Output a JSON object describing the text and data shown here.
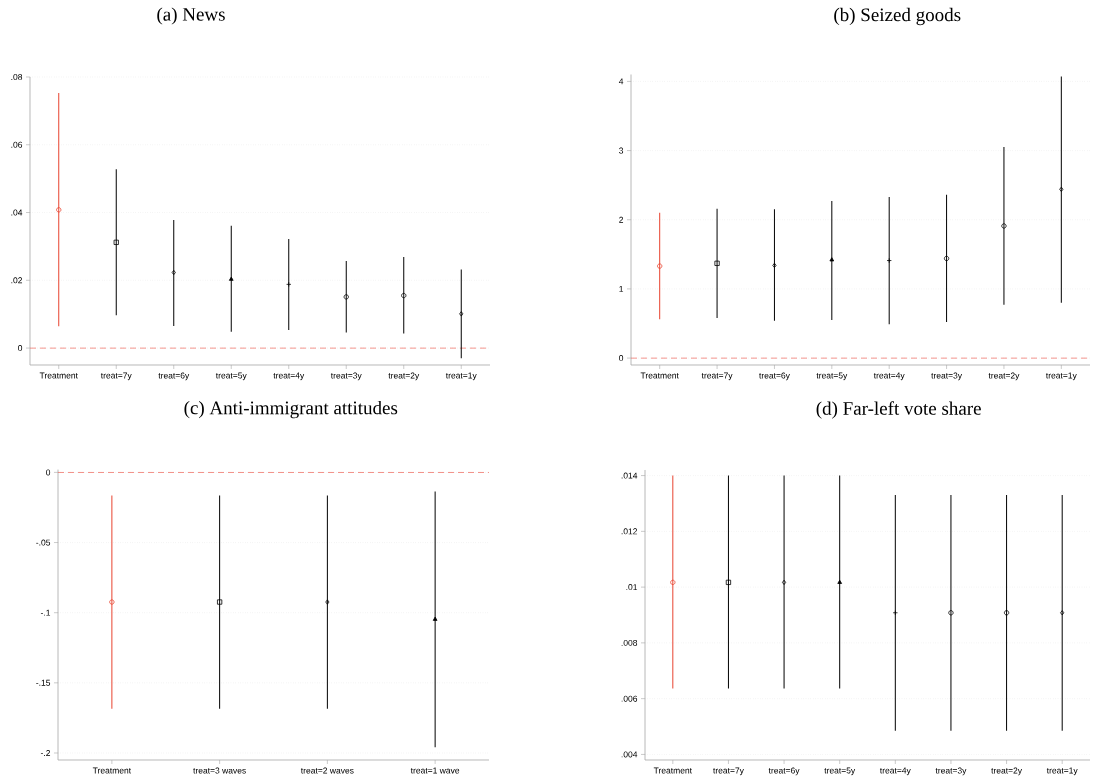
{
  "chart_data": [
    {
      "type": "scatter",
      "title": "(a) News",
      "categories": [
        "Treatment",
        "treat=7y",
        "treat=6y",
        "treat=5y",
        "treat=4y",
        "treat=3y",
        "treat=2y",
        "treat=1y"
      ],
      "series": [
        {
          "color": "#e8432f",
          "marker": "circle",
          "values": [
            0.0408,
            null,
            null,
            null,
            null,
            null,
            null,
            null
          ],
          "errors": [
            [
              0.0064,
              0.0753
            ],
            null,
            null,
            null,
            null,
            null,
            null,
            null
          ]
        },
        {
          "color": "#000000",
          "marker": "square",
          "values": [
            null,
            0.0312,
            null,
            null,
            null,
            null,
            null,
            null
          ],
          "errors": [
            null,
            [
              0.0097,
              0.0528
            ],
            null,
            null,
            null,
            null,
            null,
            null
          ]
        },
        {
          "color": "#000000",
          "marker": "diamond",
          "values": [
            null,
            null,
            0.0223,
            null,
            null,
            null,
            null,
            0.0101
          ],
          "errors": [
            null,
            null,
            [
              0.0065,
              0.0378
            ],
            null,
            null,
            null,
            null,
            [
              -0.003,
              0.0232
            ]
          ]
        },
        {
          "color": "#000000",
          "marker": "triangle",
          "values": [
            null,
            null,
            null,
            0.0203,
            null,
            null,
            null,
            null
          ],
          "errors": [
            null,
            null,
            null,
            [
              0.0048,
              0.0361
            ],
            null,
            null,
            null,
            null
          ]
        },
        {
          "color": "#000000",
          "marker": "cross",
          "values": [
            null,
            null,
            null,
            null,
            0.0188,
            null,
            null,
            null
          ],
          "errors": [
            null,
            null,
            null,
            null,
            [
              0.0053,
              0.0322
            ],
            null,
            null,
            null
          ]
        },
        {
          "color": "#000000",
          "marker": "circle",
          "values": [
            null,
            null,
            null,
            null,
            null,
            0.0151,
            0.0155,
            null
          ],
          "errors": [
            null,
            null,
            null,
            null,
            null,
            [
              0.0046,
              0.0257
            ],
            [
              0.0043,
              0.0269
            ],
            null
          ]
        }
      ],
      "ylim": [
        -0.005,
        0.08
      ],
      "yticks": [
        0,
        {
          "value": 0.02,
          "label": ".02"
        },
        {
          "value": 0.04,
          "label": ".04"
        },
        {
          "value": 0.06,
          "label": ".06"
        },
        {
          "value": 0.08,
          "label": ".08"
        }
      ],
      "grid": "y",
      "ref_lines": [
        {
          "axis": "y",
          "value": 0,
          "color": "#ee6a5f",
          "line_style": "dashed"
        }
      ]
    },
    {
      "type": "scatter",
      "title": "(b) Seized goods",
      "categories": [
        "Treatment",
        "treat=7y",
        "treat=6y",
        "treat=5y",
        "treat=4y",
        "treat=3y",
        "treat=2y",
        "treat=1y"
      ],
      "series": [
        {
          "color": "#e8432f",
          "marker": "circle",
          "values": [
            1.33,
            null,
            null,
            null,
            null,
            null,
            null,
            null
          ],
          "errors": [
            [
              0.56,
              2.1
            ],
            null,
            null,
            null,
            null,
            null,
            null,
            null
          ]
        },
        {
          "color": "#000000",
          "marker": "square",
          "values": [
            null,
            1.37,
            null,
            null,
            null,
            null,
            null,
            null
          ],
          "errors": [
            null,
            [
              0.58,
              2.16
            ],
            null,
            null,
            null,
            null,
            null,
            null
          ]
        },
        {
          "color": "#000000",
          "marker": "diamond",
          "values": [
            null,
            null,
            1.34,
            null,
            null,
            null,
            null,
            2.44
          ],
          "errors": [
            null,
            null,
            [
              0.54,
              2.15
            ],
            null,
            null,
            null,
            null,
            [
              0.8,
              4.07
            ]
          ]
        },
        {
          "color": "#000000",
          "marker": "triangle",
          "values": [
            null,
            null,
            null,
            1.42,
            null,
            null,
            null,
            null
          ],
          "errors": [
            null,
            null,
            null,
            [
              0.55,
              2.27
            ],
            null,
            null,
            null,
            null
          ]
        },
        {
          "color": "#000000",
          "marker": "cross",
          "values": [
            null,
            null,
            null,
            null,
            1.41,
            null,
            null,
            null
          ],
          "errors": [
            null,
            null,
            null,
            null,
            [
              0.49,
              2.33
            ],
            null,
            null,
            null
          ]
        },
        {
          "color": "#000000",
          "marker": "circle",
          "values": [
            null,
            null,
            null,
            null,
            null,
            1.44,
            1.91,
            null
          ],
          "errors": [
            null,
            null,
            null,
            null,
            null,
            [
              0.52,
              2.36
            ],
            [
              0.77,
              3.05
            ],
            null
          ]
        }
      ],
      "ylim": [
        -0.1,
        4.1
      ],
      "yticks": [
        0,
        1,
        2,
        3,
        4
      ],
      "grid": "y",
      "ref_lines": [
        {
          "axis": "y",
          "value": 0,
          "color": "#ee6a5f",
          "line_style": "dashed"
        }
      ]
    },
    {
      "type": "scatter",
      "title": "(c) Anti-immigrant attitudes",
      "categories": [
        "Treatment",
        "treat=3 waves",
        "treat=2 waves",
        "treat=1 wave"
      ],
      "series": [
        {
          "color": "#e8432f",
          "marker": "circle",
          "values": [
            -0.0924,
            null,
            null,
            null
          ],
          "errors": [
            [
              -0.1685,
              -0.0164
            ],
            null,
            null,
            null
          ]
        },
        {
          "color": "#000000",
          "marker": "square",
          "values": [
            null,
            -0.0924,
            null,
            null
          ],
          "errors": [
            null,
            [
              -0.1685,
              -0.0164
            ],
            null,
            null
          ]
        },
        {
          "color": "#000000",
          "marker": "diamond",
          "values": [
            null,
            null,
            -0.0924,
            null
          ],
          "errors": [
            null,
            null,
            [
              -0.1685,
              -0.0164
            ],
            null
          ]
        },
        {
          "color": "#000000",
          "marker": "triangle",
          "values": [
            null,
            null,
            null,
            -0.1047
          ],
          "errors": [
            null,
            null,
            null,
            [
              -0.196,
              -0.0137
            ]
          ]
        }
      ],
      "ylim": [
        -0.205,
        0.002
      ],
      "yticks": [
        {
          "value": -0.2,
          "label": "-.2"
        },
        {
          "value": -0.15,
          "label": "-.15"
        },
        {
          "value": -0.1,
          "label": "-.1"
        },
        {
          "value": -0.05,
          "label": "-.05"
        },
        0
      ],
      "grid": "y",
      "ref_lines": [
        {
          "axis": "y",
          "value": 0,
          "color": "#ee6a5f",
          "line_style": "dashed"
        }
      ]
    },
    {
      "type": "scatter",
      "title": "(d) Far-left vote share",
      "categories": [
        "Treatment",
        "treat=7y",
        "treat=6y",
        "treat=5y",
        "treat=4y",
        "treat=3y",
        "treat=2y",
        "treat=1y"
      ],
      "series": [
        {
          "color": "#e8432f",
          "marker": "circle",
          "values": [
            0.01017,
            null,
            null,
            null,
            null,
            null,
            null,
            null
          ],
          "errors": [
            [
              0.00636,
              0.014
            ],
            null,
            null,
            null,
            null,
            null,
            null,
            null
          ]
        },
        {
          "color": "#000000",
          "marker": "square",
          "values": [
            null,
            0.01017,
            null,
            null,
            null,
            null,
            null,
            null
          ],
          "errors": [
            null,
            [
              0.00636,
              0.014
            ],
            null,
            null,
            null,
            null,
            null,
            null
          ]
        },
        {
          "color": "#000000",
          "marker": "diamond",
          "values": [
            null,
            null,
            0.01017,
            null,
            null,
            null,
            null,
            0.00908
          ],
          "errors": [
            null,
            null,
            [
              0.00636,
              0.014
            ],
            null,
            null,
            null,
            null,
            [
              0.00485,
              0.0133
            ]
          ]
        },
        {
          "color": "#000000",
          "marker": "triangle",
          "values": [
            null,
            null,
            null,
            0.01017,
            null,
            null,
            null,
            null
          ],
          "errors": [
            null,
            null,
            null,
            [
              0.00636,
              0.014
            ],
            null,
            null,
            null,
            null
          ]
        },
        {
          "color": "#000000",
          "marker": "cross",
          "values": [
            null,
            null,
            null,
            null,
            0.00908,
            null,
            null,
            null
          ],
          "errors": [
            null,
            null,
            null,
            null,
            [
              0.00485,
              0.0133
            ],
            null,
            null,
            null
          ]
        },
        {
          "color": "#000000",
          "marker": "circle",
          "values": [
            null,
            null,
            null,
            null,
            null,
            0.00908,
            0.00908,
            null
          ],
          "errors": [
            null,
            null,
            null,
            null,
            null,
            [
              0.00485,
              0.0133
            ],
            [
              0.00485,
              0.0133
            ],
            null
          ]
        }
      ],
      "ylim": [
        0.0038,
        0.0142
      ],
      "yticks": [
        {
          "value": 0.004,
          "label": ".004"
        },
        {
          "value": 0.006,
          "label": ".006"
        },
        {
          "value": 0.008,
          "label": ".008"
        },
        {
          "value": 0.01,
          "label": ".01"
        },
        {
          "value": 0.012,
          "label": ".012"
        },
        {
          "value": 0.014,
          "label": ".014"
        }
      ],
      "grid": "y"
    }
  ]
}
